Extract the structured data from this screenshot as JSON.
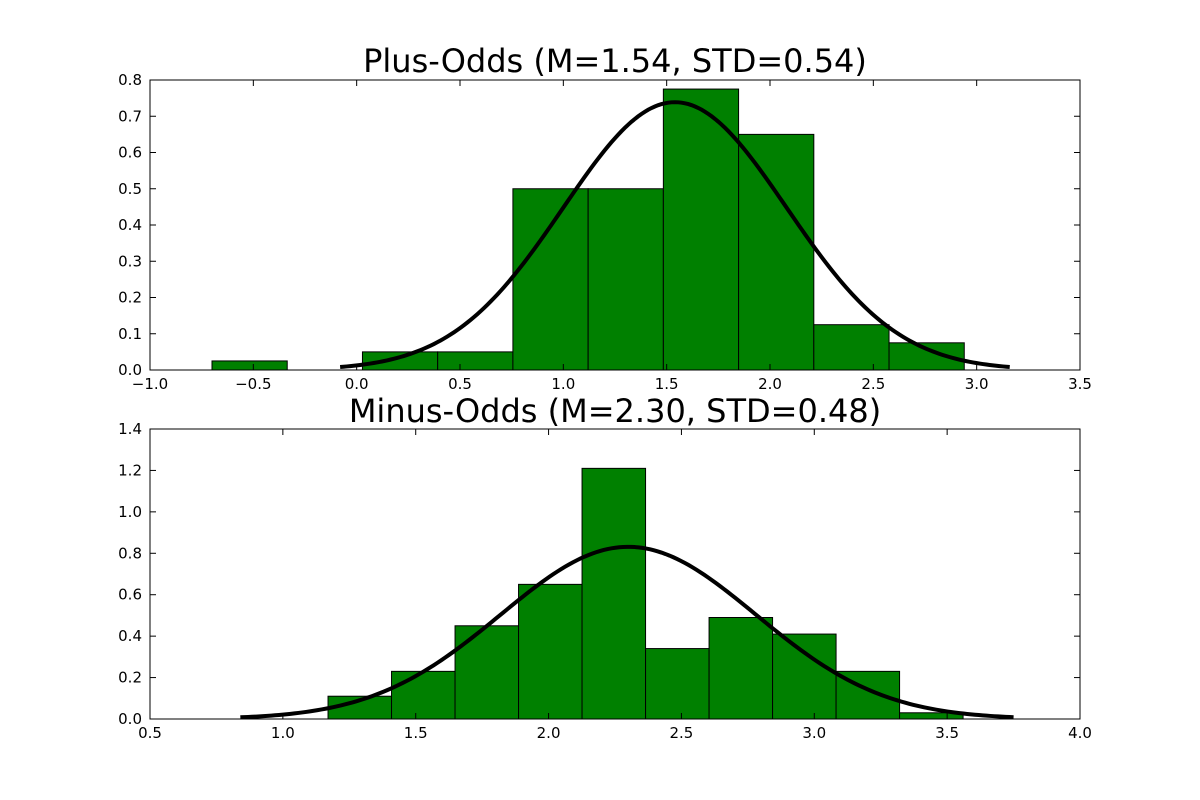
{
  "colors": {
    "bar_fill": "#008000",
    "bar_edge": "#000000",
    "curve": "#000000",
    "background": "#ffffff"
  },
  "chart_data": [
    {
      "type": "bar",
      "title": "Plus-Odds (M=1.54, STD=0.54)",
      "xlabel": "",
      "ylabel": "",
      "xlim": [
        -1.0,
        3.5
      ],
      "ylim": [
        0.0,
        0.8
      ],
      "xticks": [
        -1.0,
        -0.5,
        0.0,
        0.5,
        1.0,
        1.5,
        2.0,
        2.5,
        3.0,
        3.5
      ],
      "xtick_labels": [
        "−1.0",
        "−0.5",
        "0.0",
        "0.5",
        "1.0",
        "1.5",
        "2.0",
        "2.5",
        "3.0",
        "3.5"
      ],
      "yticks": [
        0.0,
        0.1,
        0.2,
        0.3,
        0.4,
        0.5,
        0.6,
        0.7,
        0.8
      ],
      "ytick_labels": [
        "0.0",
        "0.1",
        "0.2",
        "0.3",
        "0.4",
        "0.5",
        "0.6",
        "0.7",
        "0.8"
      ],
      "bin_edges": [
        -0.7,
        -0.336,
        0.028,
        0.392,
        0.756,
        1.12,
        1.484,
        1.848,
        2.212,
        2.576,
        2.94
      ],
      "values": [
        0.025,
        0.0,
        0.05,
        0.05,
        0.5,
        0.5,
        0.775,
        0.65,
        0.125,
        0.075
      ],
      "grid": false,
      "curve": {
        "type": "normal_pdf",
        "mean": 1.54,
        "std": 0.54,
        "x_range": [
          -0.08,
          3.16
        ]
      }
    },
    {
      "type": "bar",
      "title": "Minus-Odds (M=2.30, STD=0.48)",
      "xlabel": "",
      "ylabel": "",
      "xlim": [
        0.5,
        4.0
      ],
      "ylim": [
        0.0,
        1.4
      ],
      "xticks": [
        0.5,
        1.0,
        1.5,
        2.0,
        2.5,
        3.0,
        3.5,
        4.0
      ],
      "xtick_labels": [
        "0.5",
        "1.0",
        "1.5",
        "2.0",
        "2.5",
        "3.0",
        "3.5",
        "4.0"
      ],
      "yticks": [
        0.0,
        0.2,
        0.4,
        0.6,
        0.8,
        1.0,
        1.2,
        1.4
      ],
      "ytick_labels": [
        "0.0",
        "0.2",
        "0.4",
        "0.6",
        "0.8",
        "1.0",
        "1.2",
        "1.4"
      ],
      "bin_edges": [
        1.17,
        1.409,
        1.648,
        1.887,
        2.126,
        2.365,
        2.604,
        2.843,
        3.082,
        3.321,
        3.56
      ],
      "values": [
        0.11,
        0.23,
        0.45,
        0.65,
        1.21,
        0.34,
        0.49,
        0.41,
        0.23,
        0.03
      ],
      "grid": false,
      "curve": {
        "type": "normal_pdf",
        "mean": 2.3,
        "std": 0.48,
        "x_range": [
          0.84,
          3.75
        ]
      }
    }
  ]
}
